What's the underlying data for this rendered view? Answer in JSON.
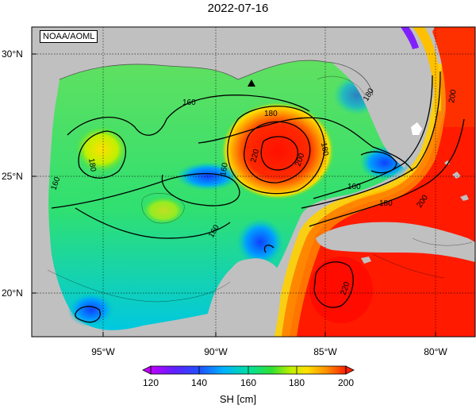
{
  "title": "2022-07-16",
  "credit": "NOAA/AOML",
  "lat_labels": [
    "30°N",
    "25°N",
    "20°N"
  ],
  "lon_labels": [
    "95°W",
    "90°W",
    "85°W",
    "80°W"
  ],
  "contour_labels": [
    "160",
    "180",
    "160",
    "180",
    "200",
    "220",
    "180",
    "180",
    "160",
    "160",
    "160",
    "180",
    "200",
    "220",
    "200"
  ],
  "colorbar": {
    "ticks": [
      "120",
      "140",
      "160",
      "180",
      "200"
    ],
    "label": "SH [cm]",
    "colors": [
      "#c000ff",
      "#2020ff",
      "#00b0ff",
      "#00e0a0",
      "#30e030",
      "#c0f000",
      "#ffe000",
      "#ff9000",
      "#ff2000"
    ]
  },
  "colors": {
    "land": "#c0c0c0",
    "ocean_high": "#ff1a00",
    "ocean_low": "#2060ff"
  }
}
